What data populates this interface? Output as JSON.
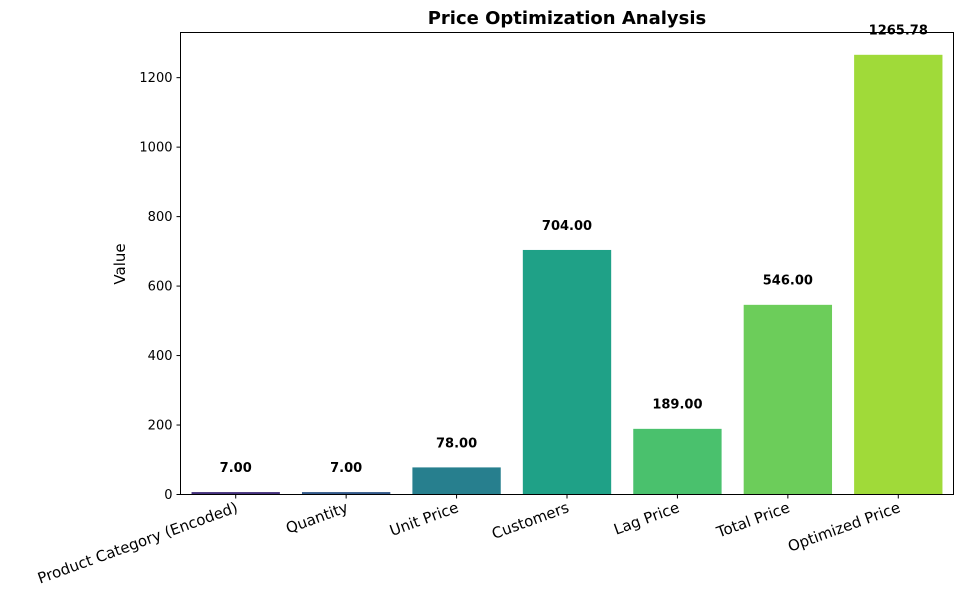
{
  "chart_data": {
    "type": "bar",
    "title": "Price Optimization Analysis",
    "xlabel": "",
    "ylabel": "Value",
    "categories": [
      "Product Category (Encoded)",
      "Quantity",
      "Unit Price",
      "Customers",
      "Lag Price",
      "Total Price",
      "Optimized Price"
    ],
    "values": [
      7.0,
      7.0,
      78.0,
      704.0,
      189.0,
      546.0,
      1265.78
    ],
    "value_labels": [
      "7.00",
      "7.00",
      "78.00",
      "704.00",
      "189.00",
      "546.00",
      "1265.78"
    ],
    "colors": [
      "#46327e",
      "#365c8d",
      "#277f8e",
      "#1fa187",
      "#4ac16d",
      "#6ccd5a",
      "#a0da39"
    ],
    "ylim": [
      0,
      1330
    ],
    "yticks": [
      0,
      200,
      400,
      600,
      800,
      1000,
      1200
    ],
    "ytick_labels": [
      "0",
      "200",
      "400",
      "600",
      "800",
      "1000",
      "1200"
    ],
    "grid": false,
    "legend": "none"
  }
}
